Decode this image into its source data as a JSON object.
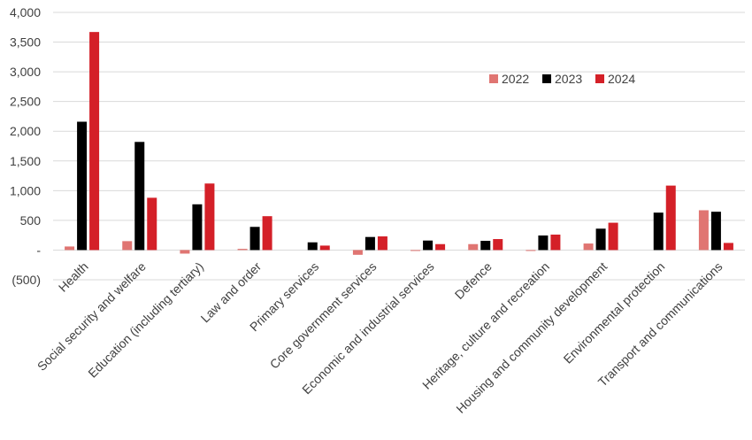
{
  "chart_data": {
    "type": "bar",
    "title": "",
    "xlabel": "",
    "ylabel": "",
    "ylim": [
      -500,
      4000
    ],
    "yticks": [
      {
        "value": -500,
        "label": "(500)"
      },
      {
        "value": 0,
        "label": "-"
      },
      {
        "value": 500,
        "label": "500"
      },
      {
        "value": 1000,
        "label": "1,000"
      },
      {
        "value": 1500,
        "label": "1,500"
      },
      {
        "value": 2000,
        "label": "2,000"
      },
      {
        "value": 2500,
        "label": "2,500"
      },
      {
        "value": 3000,
        "label": "3,000"
      },
      {
        "value": 3500,
        "label": "3,500"
      },
      {
        "value": 4000,
        "label": "4,000"
      }
    ],
    "grid": true,
    "legend_position": "upper-right inside plot",
    "categories": [
      "Health",
      "Social security and welfare",
      "Education (including tertiary)",
      "Law and order",
      "Primary services",
      "Core government services",
      "Economic and industrial services",
      "Defence",
      "Heritage, culture and recreation",
      "Housing and community development",
      "Environmental protection",
      "Transport and communications"
    ],
    "series": [
      {
        "name": "2022",
        "color": "#e07572",
        "values": [
          60,
          150,
          -60,
          20,
          0,
          -80,
          -15,
          100,
          -15,
          110,
          0,
          670
        ]
      },
      {
        "name": "2023",
        "color": "#000000",
        "values": [
          2160,
          1820,
          770,
          390,
          130,
          220,
          160,
          155,
          245,
          360,
          630,
          645
        ]
      },
      {
        "name": "2024",
        "color": "#d42028",
        "values": [
          3670,
          880,
          1120,
          570,
          75,
          230,
          100,
          185,
          260,
          460,
          1085,
          120
        ]
      }
    ]
  }
}
